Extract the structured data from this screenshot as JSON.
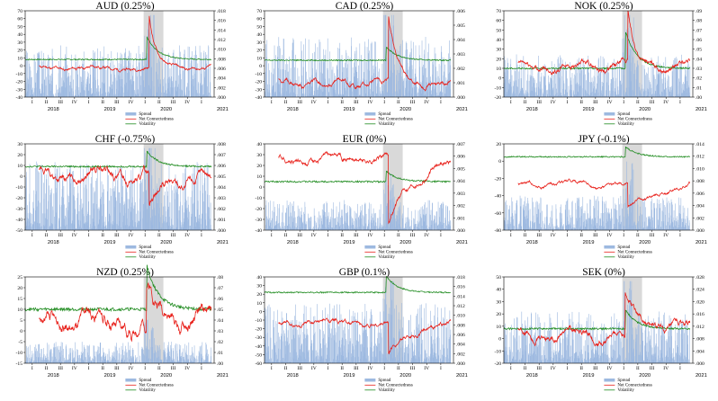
{
  "figure": {
    "legend_labels": [
      "Spread",
      "Net Connectedness",
      "Volatility"
    ],
    "quarter_labels": [
      "I",
      "II",
      "III",
      "IV"
    ],
    "years": [
      "2018",
      "2019",
      "2020",
      "2021"
    ],
    "colors": {
      "spread": "#9db9e0",
      "net": "#e8201a",
      "vol": "#1f8b1f",
      "shade": "#d9d9d9",
      "axis": "#000000"
    }
  },
  "chart_data": [
    {
      "type": "line",
      "title": "AUD (0.25%)",
      "ylim_left": [
        -40,
        70
      ],
      "yticks_left": [
        70,
        60,
        50,
        40,
        30,
        20,
        10,
        0,
        -10,
        -20,
        -30,
        -40
      ],
      "ylim_right": [
        0,
        0.018
      ],
      "yticks_right": [
        ".018",
        ".016",
        ".014",
        ".012",
        ".010",
        ".008",
        ".006",
        ".004",
        ".002",
        ".000"
      ],
      "series": [
        {
          "name": "Net Connectedness",
          "start": 2018.25,
          "baseline": -3,
          "noise": 4,
          "shock": {
            "at": 2020.2,
            "peak": 62,
            "decay": 0.12
          }
        },
        {
          "name": "Volatility",
          "level": 8,
          "shock_peak": 30
        },
        {
          "name": "Spread",
          "level": 0.6
        }
      ]
    },
    {
      "type": "line",
      "title": "CAD (0.25%)",
      "ylim_left": [
        -40,
        70
      ],
      "yticks_left": [
        70,
        60,
        50,
        40,
        30,
        20,
        10,
        0,
        -10,
        -20,
        -30,
        -40
      ],
      "ylim_right": [
        0,
        0.006
      ],
      "yticks_right": [
        ".006",
        ".005",
        ".004",
        ".003",
        ".002",
        ".001",
        ".000"
      ],
      "series": [
        {
          "name": "Net Connectedness",
          "start": 2018.25,
          "baseline": -20,
          "noise": 6,
          "shock": {
            "at": 2020.2,
            "peak": 58,
            "decay": 0.15
          }
        },
        {
          "name": "Volatility",
          "level": 7,
          "shock_peak": 18
        },
        {
          "name": "Spread",
          "level": 0.7
        }
      ]
    },
    {
      "type": "line",
      "title": "NOK (0.25%)",
      "ylim_left": [
        -20,
        70
      ],
      "yticks_left": [
        70,
        60,
        50,
        40,
        30,
        20,
        10,
        0,
        -10,
        -20
      ],
      "ylim_right": [
        0,
        0.09
      ],
      "yticks_right": [
        ".09",
        ".08",
        ".07",
        ".06",
        ".05",
        ".04",
        ".03",
        ".02",
        ".01",
        ".00"
      ],
      "series": [
        {
          "name": "Net Connectedness",
          "start": 2018.25,
          "baseline": 12,
          "noise": 6,
          "shock": {
            "at": 2020.2,
            "peak": 65,
            "decay": 0.1
          }
        },
        {
          "name": "Volatility",
          "level": 10,
          "shock_peak": 40
        },
        {
          "name": "Spread",
          "level": 0.5
        }
      ]
    },
    {
      "type": "line",
      "title": "CHF (-0.75%)",
      "ylim_left": [
        -50,
        30
      ],
      "yticks_left": [
        30,
        20,
        10,
        0,
        -10,
        -20,
        -30,
        -40,
        -50
      ],
      "ylim_right": [
        0,
        0.008
      ],
      "yticks_right": [
        ".008",
        ".007",
        ".006",
        ".005",
        ".004",
        ".003",
        ".002",
        ".001",
        ".000"
      ],
      "series": [
        {
          "name": "Net Connectedness",
          "start": 2018.25,
          "baseline": 0,
          "noise": 8,
          "shock": {
            "at": 2020.2,
            "peak": -30,
            "decay": 0.3
          }
        },
        {
          "name": "Volatility",
          "level": 9,
          "shock_peak": 15
        },
        {
          "name": "Spread",
          "level": 0.8
        }
      ]
    },
    {
      "type": "line",
      "title": "EUR (0%)",
      "ylim_left": [
        -40,
        40
      ],
      "yticks_left": [
        40,
        30,
        20,
        10,
        0,
        -10,
        -20,
        -30,
        -40
      ],
      "ylim_right": [
        0,
        0.007
      ],
      "yticks_right": [
        ".007",
        ".006",
        ".005",
        ".004",
        ".003",
        ".002",
        ".001",
        ".000"
      ],
      "series": [
        {
          "name": "Net Connectedness",
          "start": 2018.25,
          "baseline": 27,
          "noise": 5,
          "shock": {
            "at": 2020.2,
            "peak": -35,
            "decay": 0.4
          }
        },
        {
          "name": "Volatility",
          "level": 5,
          "shock_peak": 10
        },
        {
          "name": "Spread",
          "level": 0.35
        }
      ]
    },
    {
      "type": "line",
      "title": "JPY (-0.1%)",
      "ylim_left": [
        -80,
        20
      ],
      "yticks_left": [
        20,
        0,
        -20,
        -40,
        -60,
        -80
      ],
      "ylim_right": [
        0,
        0.014
      ],
      "yticks_right": [
        ".014",
        ".012",
        ".010",
        ".008",
        ".006",
        ".004",
        ".002",
        ".000"
      ],
      "series": [
        {
          "name": "Net Connectedness",
          "start": 2018.25,
          "baseline": -27,
          "noise": 4,
          "shock": {
            "at": 2020.2,
            "peak": -55,
            "decay": 0.5
          }
        },
        {
          "name": "Volatility",
          "level": 5,
          "shock_peak": 12
        },
        {
          "name": "Spread",
          "level": 0.4
        }
      ]
    },
    {
      "type": "line",
      "title": "NZD (0.25%)",
      "ylim_left": [
        -15,
        25
      ],
      "yticks_left": [
        25,
        20,
        15,
        10,
        5,
        0,
        -5,
        -10,
        -15
      ],
      "ylim_right": [
        0,
        0.08
      ],
      "yticks_right": [
        ".08",
        ".07",
        ".06",
        ".05",
        ".04",
        ".03",
        ".02",
        ".01",
        ".00"
      ],
      "series": [
        {
          "name": "Net Connectedness",
          "start": 2018.25,
          "baseline": 3,
          "noise": 6,
          "shock": {
            "at": 2020.15,
            "peak": 22,
            "decay": 0.3
          }
        },
        {
          "name": "Volatility",
          "level": 10,
          "shock_peak": 21
        },
        {
          "name": "Spread",
          "level": 0.25
        }
      ]
    },
    {
      "type": "line",
      "title": "GBP (0.1%)",
      "ylim_left": [
        -60,
        40
      ],
      "yticks_left": [
        40,
        30,
        20,
        10,
        0,
        -10,
        -20,
        -30,
        -40,
        -50,
        -60
      ],
      "ylim_right": [
        0,
        0.018
      ],
      "yticks_right": [
        ".018",
        ".016",
        ".014",
        ".012",
        ".010",
        ".008",
        ".006",
        ".004",
        ".002",
        ".000"
      ],
      "series": [
        {
          "name": "Net Connectedness",
          "start": 2018.25,
          "baseline": -15,
          "noise": 5,
          "shock": {
            "at": 2020.2,
            "peak": -50,
            "decay": 0.35
          }
        },
        {
          "name": "Volatility",
          "level": 22,
          "shock_peak": 20
        },
        {
          "name": "Spread",
          "level": 0.7
        }
      ]
    },
    {
      "type": "line",
      "title": "SEK (0%)",
      "ylim_left": [
        -20,
        50
      ],
      "yticks_left": [
        50,
        40,
        30,
        20,
        10,
        0,
        -10,
        -20
      ],
      "ylim_right": [
        0,
        0.028
      ],
      "yticks_right": [
        ".028",
        ".024",
        ".020",
        ".016",
        ".012",
        ".008",
        ".004",
        ".000"
      ],
      "series": [
        {
          "name": "Net Connectedness",
          "start": 2018.25,
          "baseline": 5,
          "noise": 6,
          "shock": {
            "at": 2020.15,
            "peak": 42,
            "decay": 0.25
          }
        },
        {
          "name": "Volatility",
          "level": 8,
          "shock_peak": 16
        },
        {
          "name": "Spread",
          "level": 0.6
        }
      ]
    }
  ]
}
